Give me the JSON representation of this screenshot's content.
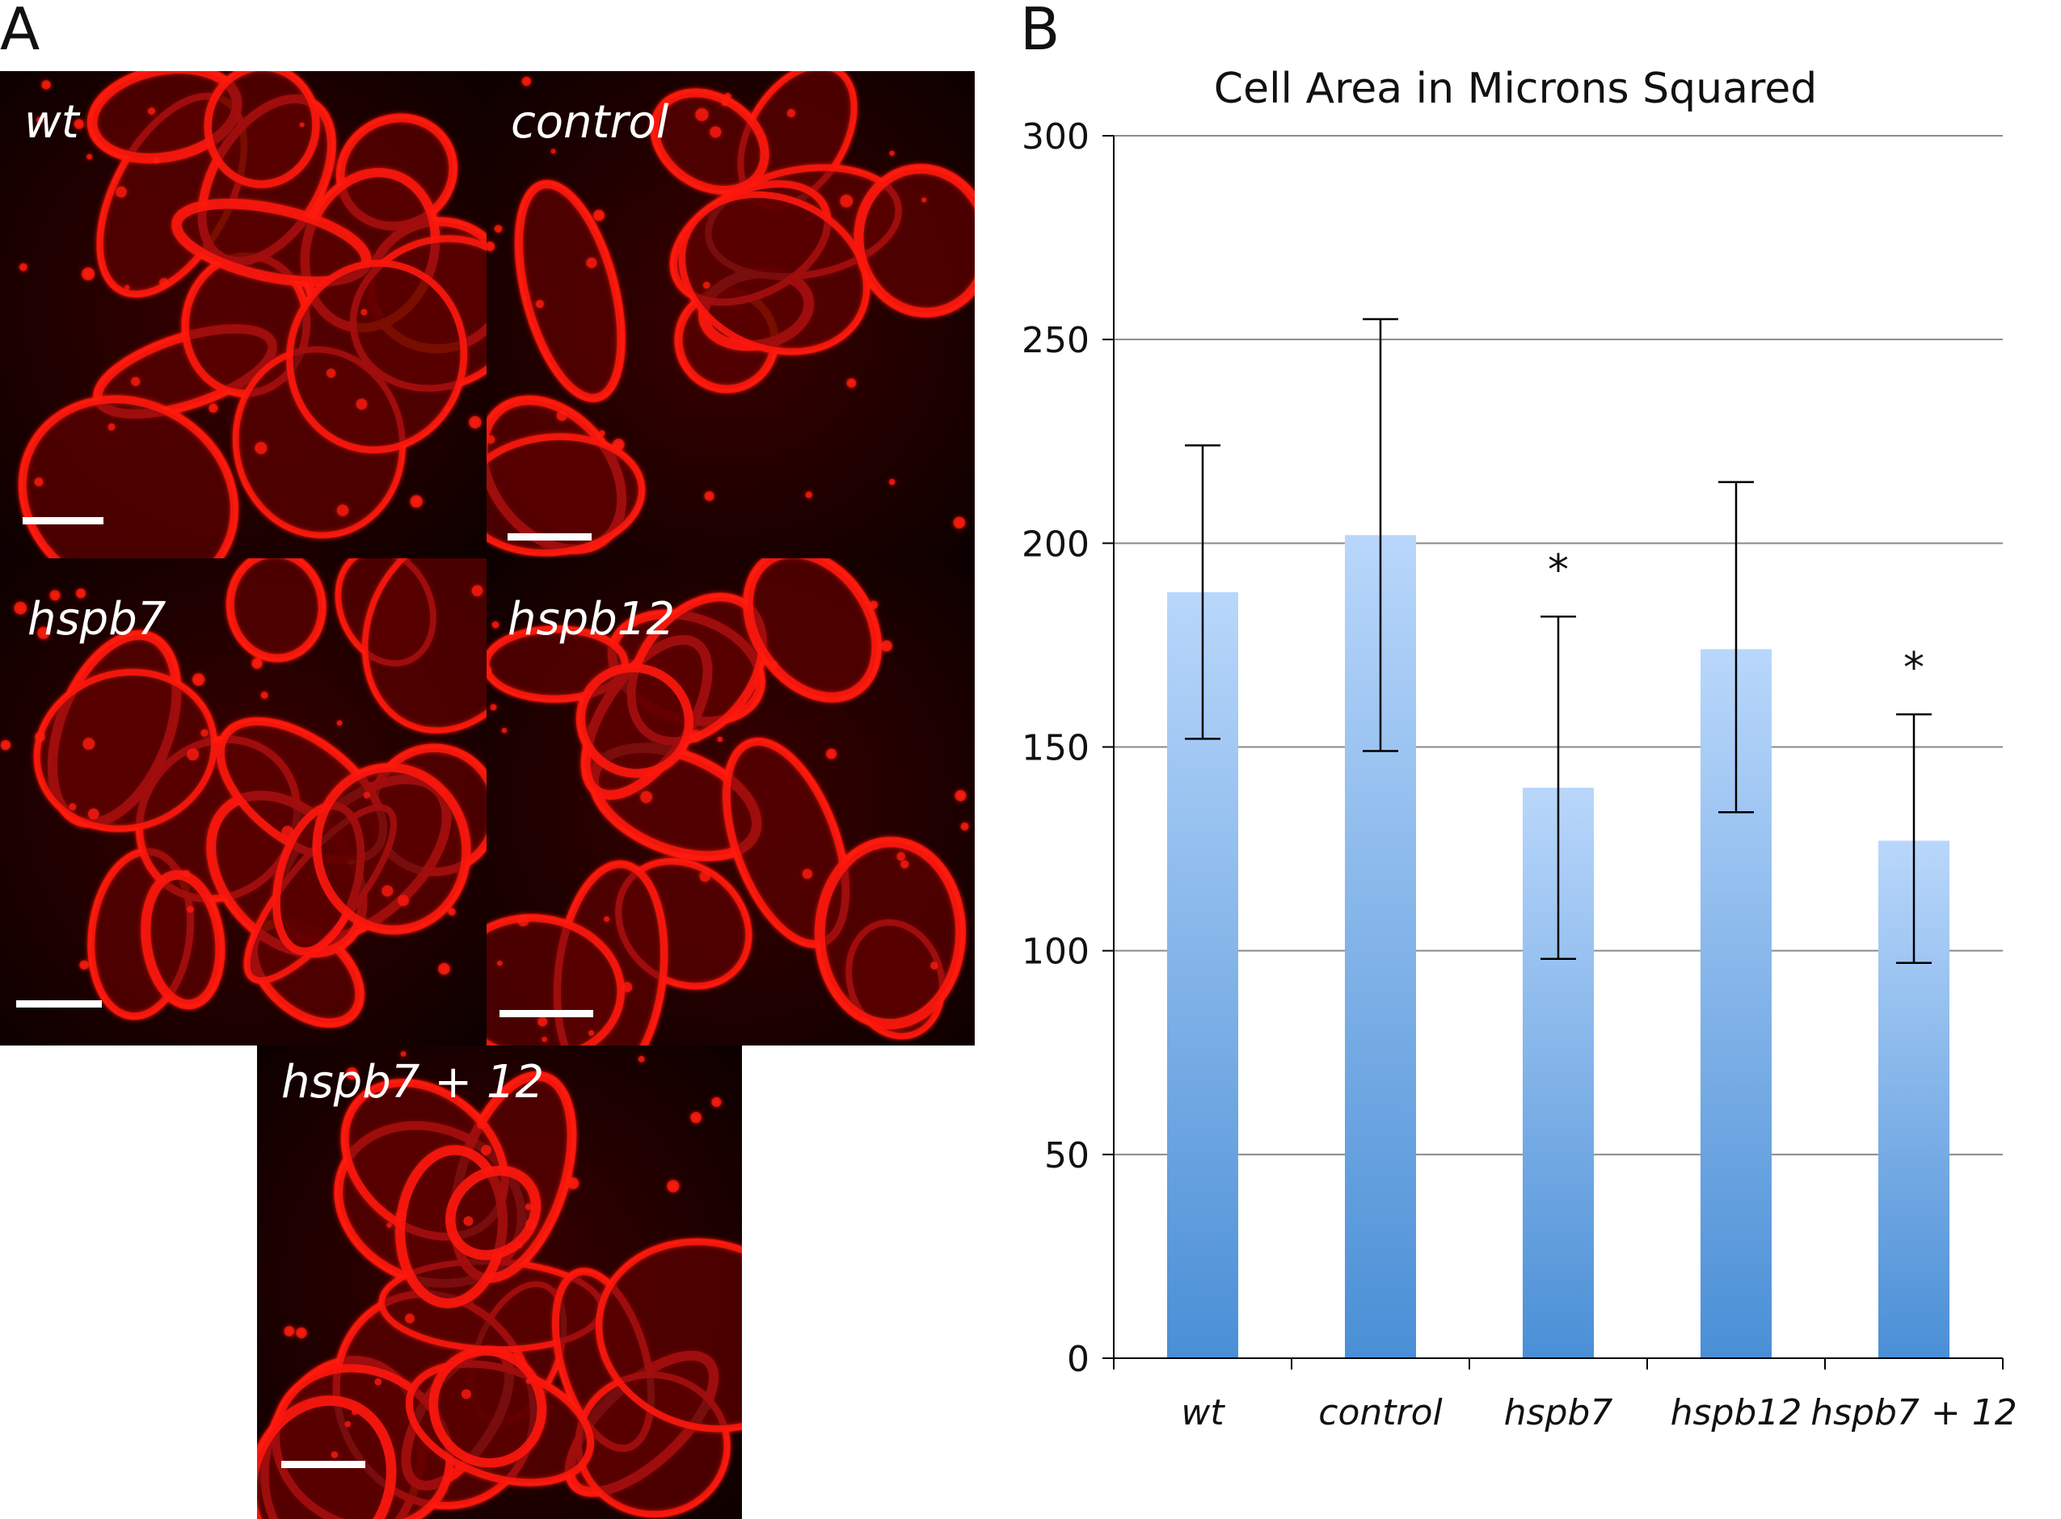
{
  "panels": {
    "a_label": "A",
    "b_label": "B"
  },
  "micrographs": [
    {
      "label": "wt"
    },
    {
      "label": "control"
    },
    {
      "label": "hspb7"
    },
    {
      "label": "hspb12"
    },
    {
      "label": "hspb7 + 12"
    }
  ],
  "colors": {
    "stain": "#ff1a10",
    "background": "#1a0000",
    "bar_top": "#b9d7fb",
    "bar_bottom": "#4a8fd6",
    "scale_bar": "#ffffff"
  },
  "chart_data": {
    "type": "bar",
    "title": "Cell Area in Microns Squared",
    "xlabel": "",
    "ylabel": "",
    "ylim": [
      0,
      300
    ],
    "yticks": [
      0,
      50,
      100,
      150,
      200,
      250,
      300
    ],
    "categories": [
      "wt",
      "control",
      "hspb7",
      "hspb12",
      "hspb7 + 12"
    ],
    "values": [
      188,
      202,
      140,
      174,
      127
    ],
    "error_low": [
      152,
      149,
      98,
      134,
      97
    ],
    "error_high": [
      224,
      255,
      182,
      215,
      158
    ],
    "significance": [
      "",
      "",
      "*",
      "",
      "*"
    ],
    "grid": true,
    "legend": "none"
  }
}
